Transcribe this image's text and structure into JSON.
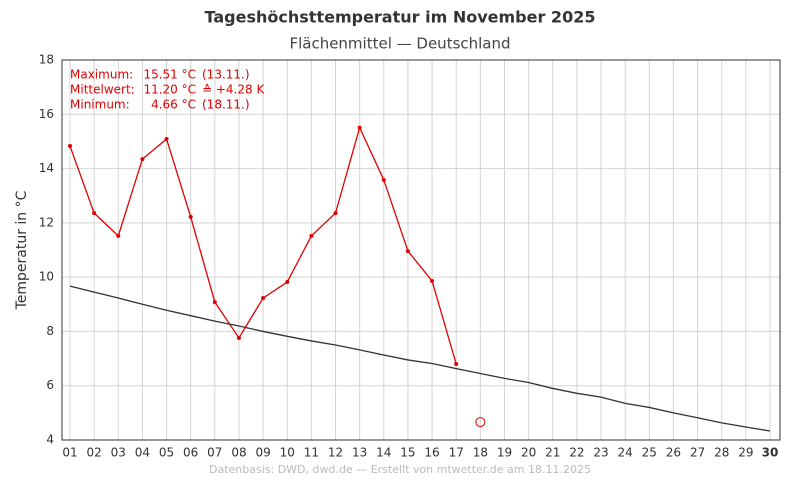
{
  "chart_data": {
    "type": "line",
    "title": "Tageshöchsttemperatur im November 2025",
    "subtitle": "Flächenmittel — Deutschland",
    "ylabel": "Temperatur in °C",
    "footer": "Datenbasis: DWD, dwd.de — Erstellt von mtwetter.de am 18.11.2025",
    "categories": [
      "01",
      "02",
      "03",
      "04",
      "05",
      "06",
      "07",
      "08",
      "09",
      "10",
      "11",
      "12",
      "13",
      "14",
      "15",
      "16",
      "17",
      "18",
      "19",
      "20",
      "21",
      "22",
      "23",
      "24",
      "25",
      "26",
      "27",
      "28",
      "29",
      "30"
    ],
    "bold_last_category": true,
    "series": [
      {
        "color": "#e00000",
        "marker": "dot",
        "values": [
          14.83,
          12.36,
          11.52,
          14.35,
          15.09,
          12.22,
          9.08,
          7.76,
          9.23,
          9.82,
          11.52,
          12.36,
          15.51,
          13.58,
          10.96,
          9.86,
          6.8,
          null,
          null,
          null,
          null,
          null,
          null,
          null,
          null,
          null,
          null,
          null,
          null,
          null
        ]
      },
      {
        "color": "#e00000",
        "marker": "open-circle",
        "values": [
          null,
          null,
          null,
          null,
          null,
          null,
          null,
          null,
          null,
          null,
          null,
          null,
          null,
          null,
          null,
          null,
          null,
          4.66,
          null,
          null,
          null,
          null,
          null,
          null,
          null,
          null,
          null,
          null,
          null,
          null
        ]
      },
      {
        "color": "#333333",
        "marker": "none",
        "values": [
          9.67,
          9.45,
          9.23,
          9.0,
          8.78,
          8.58,
          8.38,
          8.2,
          8.0,
          7.82,
          7.65,
          7.5,
          7.32,
          7.13,
          6.95,
          6.82,
          6.63,
          6.45,
          6.27,
          6.12,
          5.9,
          5.72,
          5.58,
          5.35,
          5.2,
          5.0,
          4.82,
          4.63,
          4.48,
          4.33
        ]
      }
    ],
    "annotations": [
      {
        "label": "Maximum:",
        "value": "15.51 °C",
        "note": "(13.11.)"
      },
      {
        "label": "Mittelwert:",
        "value": "11.20 °C",
        "note": "≙ +4.28 K"
      },
      {
        "label": "Minimum:",
        "value": "4.66 °C",
        "note": "(18.11.)"
      }
    ],
    "annotation_color": "#e00000",
    "ylim": [
      4,
      18
    ],
    "yticks": [
      4,
      6,
      8,
      10,
      12,
      14,
      16,
      18
    ],
    "grid": true
  }
}
